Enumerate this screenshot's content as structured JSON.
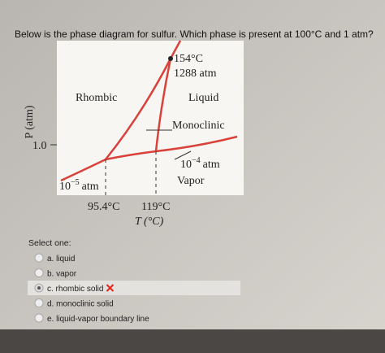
{
  "question": "Below is the phase diagram for sulfur. Which phase is present at 100°C and 1 atm?",
  "diagram": {
    "top_temp": "154°C",
    "top_pressure": "1288 atm",
    "rhombic": "Rhombic",
    "liquid": "Liquid",
    "monoclinic": "Monoclinic",
    "y_axis": "P (atm)",
    "y_tick": "1.0",
    "mid_pressure": {
      "base": "10",
      "exp": "−4",
      "unit": "atm"
    },
    "vapor": "Vapor",
    "low_pressure": {
      "base": "10",
      "exp": "−5",
      "unit": "atm"
    },
    "x_tick_1": "95.4°C",
    "x_tick_2": "119°C",
    "x_axis": "T (°C)"
  },
  "quiz": {
    "prompt": "Select one:",
    "options": [
      "a. liquid",
      "b. vapor",
      "c. rhombic solid",
      "d. monoclinic solid",
      "e. liquid-vapor boundary line"
    ]
  }
}
